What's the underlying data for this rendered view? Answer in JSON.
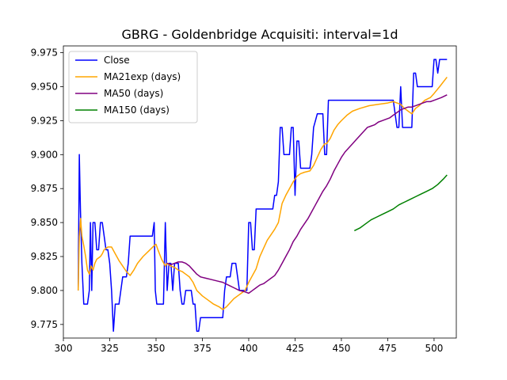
{
  "chart_data": {
    "type": "line",
    "title": "GBRG - Goldenbridge Acquisiti: interval=1d",
    "xlabel": "",
    "ylabel": "",
    "xlim": [
      300,
      512
    ],
    "ylim": [
      9.765,
      9.98
    ],
    "x_ticks": [
      300,
      325,
      350,
      375,
      400,
      425,
      450,
      475,
      500
    ],
    "y_ticks": [
      9.775,
      9.8,
      9.825,
      9.85,
      9.875,
      9.9,
      9.925,
      9.95,
      9.975
    ],
    "grid": false,
    "legend_position": "top-left",
    "series": [
      {
        "name": "Close",
        "color": "#0000ff",
        "points": [
          [
            308,
            9.8
          ],
          [
            308.6,
            9.9
          ],
          [
            309.2,
            9.86
          ],
          [
            310,
            9.82
          ],
          [
            311,
            9.79
          ],
          [
            313,
            9.79
          ],
          [
            314,
            9.8
          ],
          [
            314.6,
            9.85
          ],
          [
            315.3,
            9.8
          ],
          [
            316,
            9.85
          ],
          [
            317,
            9.85
          ],
          [
            318,
            9.83
          ],
          [
            319,
            9.83
          ],
          [
            320,
            9.85
          ],
          [
            321,
            9.85
          ],
          [
            322,
            9.84
          ],
          [
            323,
            9.83
          ],
          [
            324,
            9.83
          ],
          [
            325,
            9.82
          ],
          [
            326,
            9.8
          ],
          [
            327,
            9.77
          ],
          [
            328,
            9.79
          ],
          [
            330,
            9.79
          ],
          [
            331,
            9.8
          ],
          [
            332,
            9.81
          ],
          [
            334,
            9.81
          ],
          [
            335,
            9.82
          ],
          [
            336,
            9.84
          ],
          [
            340,
            9.84
          ],
          [
            348,
            9.84
          ],
          [
            349,
            9.85
          ],
          [
            349.6,
            9.8
          ],
          [
            350.4,
            9.79
          ],
          [
            354,
            9.79
          ],
          [
            355,
            9.85
          ],
          [
            356,
            9.8
          ],
          [
            357,
            9.82
          ],
          [
            358,
            9.82
          ],
          [
            359,
            9.8
          ],
          [
            360,
            9.82
          ],
          [
            362,
            9.82
          ],
          [
            363,
            9.8
          ],
          [
            364,
            9.79
          ],
          [
            365,
            9.79
          ],
          [
            366,
            9.8
          ],
          [
            369,
            9.8
          ],
          [
            370,
            9.79
          ],
          [
            371,
            9.79
          ],
          [
            372,
            9.77
          ],
          [
            373,
            9.77
          ],
          [
            374,
            9.78
          ],
          [
            386,
            9.78
          ],
          [
            387,
            9.8
          ],
          [
            388,
            9.81
          ],
          [
            389,
            9.81
          ],
          [
            390,
            9.81
          ],
          [
            391,
            9.82
          ],
          [
            393,
            9.82
          ],
          [
            394,
            9.81
          ],
          [
            395,
            9.8
          ],
          [
            397,
            9.8
          ],
          [
            398,
            9.8
          ],
          [
            399,
            9.8
          ],
          [
            400,
            9.85
          ],
          [
            401,
            9.85
          ],
          [
            402,
            9.83
          ],
          [
            403,
            9.83
          ],
          [
            404,
            9.86
          ],
          [
            413,
            9.86
          ],
          [
            414,
            9.87
          ],
          [
            415,
            9.87
          ],
          [
            416,
            9.88
          ],
          [
            417,
            9.92
          ],
          [
            418,
            9.92
          ],
          [
            419,
            9.9
          ],
          [
            422,
            9.9
          ],
          [
            423,
            9.92
          ],
          [
            424,
            9.92
          ],
          [
            425,
            9.87
          ],
          [
            426,
            9.91
          ],
          [
            427,
            9.91
          ],
          [
            428,
            9.89
          ],
          [
            433,
            9.89
          ],
          [
            434,
            9.9
          ],
          [
            435,
            9.92
          ],
          [
            436,
            9.925
          ],
          [
            437,
            9.93
          ],
          [
            440,
            9.93
          ],
          [
            441,
            9.9
          ],
          [
            442,
            9.9
          ],
          [
            443,
            9.94
          ],
          [
            478,
            9.94
          ],
          [
            479,
            9.93
          ],
          [
            480,
            9.92
          ],
          [
            481,
            9.92
          ],
          [
            482,
            9.95
          ],
          [
            483,
            9.92
          ],
          [
            488,
            9.92
          ],
          [
            489,
            9.96
          ],
          [
            490,
            9.96
          ],
          [
            491,
            9.95
          ],
          [
            499,
            9.95
          ],
          [
            500,
            9.97
          ],
          [
            501,
            9.97
          ],
          [
            502,
            9.96
          ],
          [
            503,
            9.97
          ],
          [
            507,
            9.97
          ]
        ]
      },
      {
        "name": "MA21exp (days)",
        "color": "#ffa500",
        "points": [
          [
            308,
            9.8
          ],
          [
            308.6,
            9.84
          ],
          [
            309.3,
            9.853
          ],
          [
            310,
            9.84
          ],
          [
            311,
            9.833
          ],
          [
            312,
            9.825
          ],
          [
            313,
            9.815
          ],
          [
            314,
            9.812
          ],
          [
            315,
            9.818
          ],
          [
            316,
            9.815
          ],
          [
            317,
            9.82
          ],
          [
            318,
            9.823
          ],
          [
            319,
            9.824
          ],
          [
            320,
            9.825
          ],
          [
            321,
            9.827
          ],
          [
            322,
            9.83
          ],
          [
            324,
            9.832
          ],
          [
            326,
            9.832
          ],
          [
            328,
            9.827
          ],
          [
            330,
            9.822
          ],
          [
            332,
            9.818
          ],
          [
            334,
            9.814
          ],
          [
            336,
            9.811
          ],
          [
            338,
            9.815
          ],
          [
            340,
            9.82
          ],
          [
            343,
            9.825
          ],
          [
            346,
            9.829
          ],
          [
            349,
            9.833
          ],
          [
            350,
            9.834
          ],
          [
            351,
            9.83
          ],
          [
            353,
            9.823
          ],
          [
            355,
            9.818
          ],
          [
            356,
            9.82
          ],
          [
            358,
            9.818
          ],
          [
            360,
            9.817
          ],
          [
            362,
            9.815
          ],
          [
            364,
            9.814
          ],
          [
            366,
            9.812
          ],
          [
            368,
            9.81
          ],
          [
            370,
            9.806
          ],
          [
            372,
            9.8
          ],
          [
            375,
            9.796
          ],
          [
            378,
            9.793
          ],
          [
            381,
            9.79
          ],
          [
            384,
            9.788
          ],
          [
            386,
            9.786
          ],
          [
            388,
            9.788
          ],
          [
            390,
            9.791
          ],
          [
            392,
            9.794
          ],
          [
            394,
            9.796
          ],
          [
            396,
            9.798
          ],
          [
            398,
            9.8
          ],
          [
            400,
            9.806
          ],
          [
            402,
            9.811
          ],
          [
            404,
            9.816
          ],
          [
            406,
            9.825
          ],
          [
            408,
            9.831
          ],
          [
            410,
            9.837
          ],
          [
            412,
            9.841
          ],
          [
            414,
            9.845
          ],
          [
            416,
            9.85
          ],
          [
            418,
            9.864
          ],
          [
            420,
            9.87
          ],
          [
            422,
            9.875
          ],
          [
            424,
            9.88
          ],
          [
            426,
            9.884
          ],
          [
            428,
            9.886
          ],
          [
            430,
            9.887
          ],
          [
            433,
            9.888
          ],
          [
            435,
            9.892
          ],
          [
            437,
            9.898
          ],
          [
            439,
            9.904
          ],
          [
            441,
            9.908
          ],
          [
            442,
            9.908
          ],
          [
            444,
            9.912
          ],
          [
            446,
            9.918
          ],
          [
            448,
            9.922
          ],
          [
            450,
            9.925
          ],
          [
            453,
            9.929
          ],
          [
            456,
            9.932
          ],
          [
            460,
            9.934
          ],
          [
            465,
            9.936
          ],
          [
            470,
            9.937
          ],
          [
            475,
            9.938
          ],
          [
            478,
            9.939
          ],
          [
            480,
            9.938
          ],
          [
            482,
            9.937
          ],
          [
            484,
            9.934
          ],
          [
            486,
            9.932
          ],
          [
            488,
            9.93
          ],
          [
            490,
            9.934
          ],
          [
            492,
            9.936
          ],
          [
            495,
            9.94
          ],
          [
            498,
            9.942
          ],
          [
            500,
            9.945
          ],
          [
            503,
            9.95
          ],
          [
            507,
            9.957
          ]
        ]
      },
      {
        "name": "MA50 (days)",
        "color": "#800080",
        "points": [
          [
            356,
            9.82
          ],
          [
            358,
            9.819
          ],
          [
            360,
            9.82
          ],
          [
            362,
            9.821
          ],
          [
            364,
            9.821
          ],
          [
            366,
            9.82
          ],
          [
            368,
            9.818
          ],
          [
            370,
            9.815
          ],
          [
            372,
            9.812
          ],
          [
            374,
            9.81
          ],
          [
            377,
            9.809
          ],
          [
            380,
            9.808
          ],
          [
            383,
            9.807
          ],
          [
            386,
            9.806
          ],
          [
            389,
            9.804
          ],
          [
            392,
            9.802
          ],
          [
            395,
            9.8
          ],
          [
            398,
            9.799
          ],
          [
            400,
            9.798
          ],
          [
            402,
            9.8
          ],
          [
            404,
            9.802
          ],
          [
            406,
            9.804
          ],
          [
            408,
            9.805
          ],
          [
            410,
            9.807
          ],
          [
            412,
            9.809
          ],
          [
            414,
            9.811
          ],
          [
            416,
            9.815
          ],
          [
            418,
            9.82
          ],
          [
            420,
            9.825
          ],
          [
            422,
            9.83
          ],
          [
            424,
            9.836
          ],
          [
            426,
            9.84
          ],
          [
            428,
            9.845
          ],
          [
            430,
            9.849
          ],
          [
            432,
            9.853
          ],
          [
            434,
            9.858
          ],
          [
            436,
            9.863
          ],
          [
            438,
            9.868
          ],
          [
            440,
            9.873
          ],
          [
            442,
            9.877
          ],
          [
            444,
            9.882
          ],
          [
            446,
            9.888
          ],
          [
            448,
            9.893
          ],
          [
            450,
            9.898
          ],
          [
            452,
            9.902
          ],
          [
            454,
            9.905
          ],
          [
            456,
            9.908
          ],
          [
            458,
            9.911
          ],
          [
            460,
            9.914
          ],
          [
            462,
            9.917
          ],
          [
            464,
            9.92
          ],
          [
            466,
            9.921
          ],
          [
            468,
            9.922
          ],
          [
            470,
            9.924
          ],
          [
            472,
            9.925
          ],
          [
            474,
            9.926
          ],
          [
            476,
            9.927
          ],
          [
            478,
            9.929
          ],
          [
            480,
            9.931
          ],
          [
            482,
            9.933
          ],
          [
            484,
            9.934
          ],
          [
            486,
            9.935
          ],
          [
            488,
            9.935
          ],
          [
            490,
            9.936
          ],
          [
            492,
            9.937
          ],
          [
            494,
            9.938
          ],
          [
            496,
            9.939
          ],
          [
            498,
            9.939
          ],
          [
            500,
            9.94
          ],
          [
            502,
            9.941
          ],
          [
            504,
            9.942
          ],
          [
            507,
            9.944
          ]
        ]
      },
      {
        "name": "MA150 (days)",
        "color": "#008000",
        "points": [
          [
            457,
            9.844
          ],
          [
            460,
            9.846
          ],
          [
            463,
            9.849
          ],
          [
            466,
            9.852
          ],
          [
            469,
            9.854
          ],
          [
            472,
            9.856
          ],
          [
            475,
            9.858
          ],
          [
            478,
            9.86
          ],
          [
            481,
            9.863
          ],
          [
            484,
            9.865
          ],
          [
            487,
            9.867
          ],
          [
            490,
            9.869
          ],
          [
            493,
            9.871
          ],
          [
            496,
            9.873
          ],
          [
            499,
            9.875
          ],
          [
            502,
            9.878
          ],
          [
            505,
            9.882
          ],
          [
            507,
            9.885
          ]
        ]
      }
    ]
  }
}
